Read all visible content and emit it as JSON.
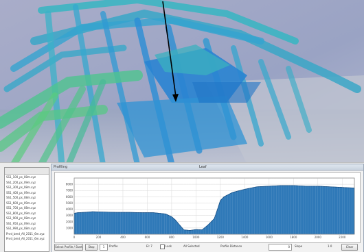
{
  "profile_window": {
    "title": "Profiling",
    "subtitle": "Leaf"
  },
  "file_list": {
    "items": [
      "SS1_100_ps_08m.xyz",
      "SS1_200_ps_09m.xyz",
      "SS1_300_ps_08m.xyz",
      "SS1_400_ps_09m.xyz",
      "SS1_500_ps_08m.xyz",
      "SS1_600_ps_09m.xyz",
      "SS1_700_ps_08m.xyz",
      "SS1_800_ps_09m.xyz",
      "SS1_900_ps_08m.xyz",
      "SS1_950_ps_09m.xyz",
      "SS1_990_ps_08m.xyz",
      "Pnrd_bmd_All_2011_6m.xyz",
      "Pnrd_bmd_All_2011_6m.xyz"
    ]
  },
  "controls": {
    "btn1_label": "Select Profile / Start",
    "btn2_label": "Stop",
    "field1_value": "1",
    "label1": "Profile",
    "label2": "El: 7",
    "label3": "Lock",
    "label4": "All Selected",
    "label5": "Profile Distance",
    "field2_value": "0",
    "label6": "Slope",
    "label7": "1.0",
    "btn3_label": "Clear"
  },
  "chart_data": {
    "type": "area",
    "title": "",
    "xlabel": "",
    "ylabel": "",
    "xlim": [
      0,
      2300
    ],
    "ylim": [
      0,
      9000
    ],
    "x_ticks": [
      0,
      200,
      400,
      600,
      800,
      1000,
      1200,
      1400,
      1600,
      1800,
      2000,
      2200
    ],
    "y_ticks": [
      1000,
      2000,
      3000,
      4000,
      5000,
      6000,
      7000,
      8000
    ],
    "grid": true,
    "color": "#2f79b8",
    "series": [
      {
        "x": [
          0,
          30,
          80,
          150,
          250,
          350,
          450,
          550,
          650,
          700,
          750,
          800,
          830,
          860,
          900,
          950,
          1000,
          1050,
          1100,
          1150,
          1180,
          1200,
          1230,
          1260,
          1300,
          1400,
          1500,
          1600,
          1700,
          1800,
          1900,
          2000,
          2100,
          2200,
          2300
        ],
        "values": [
          3350,
          3450,
          3500,
          3600,
          3550,
          3500,
          3500,
          3450,
          3450,
          3350,
          3250,
          2800,
          2300,
          1600,
          700,
          600,
          750,
          700,
          1500,
          2500,
          4200,
          5400,
          6000,
          6300,
          6700,
          7200,
          7600,
          7700,
          7800,
          7800,
          7700,
          7700,
          7600,
          7500,
          7400
        ]
      }
    ]
  }
}
